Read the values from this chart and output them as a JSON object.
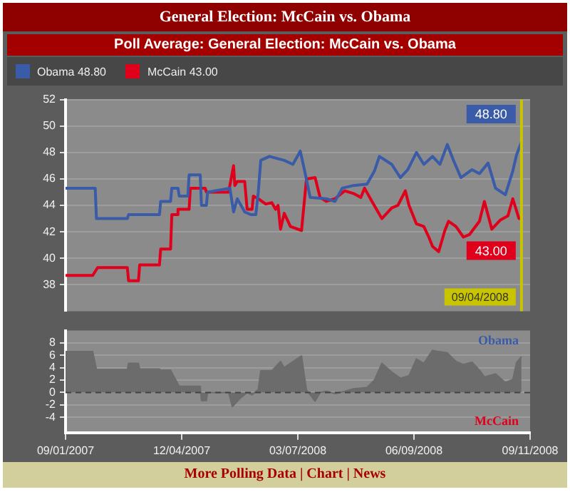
{
  "chart_data": [
    {
      "type": "line",
      "title": "General Election: McCain vs. Obama",
      "subtitle": "Poll Average: General Election: McCain vs. Obama",
      "xlim": [
        "2007-09-01",
        "2008-09-11"
      ],
      "ylim": [
        36,
        52
      ],
      "yticks": [
        38,
        40,
        42,
        44,
        46,
        48,
        50,
        52
      ],
      "tick_labels": "y",
      "grid": "y",
      "legend": "top left",
      "series": [
        {
          "name": "Obama 48.80",
          "color": "#3a5ba8",
          "x": [
            "2007-09-01",
            "2007-09-25",
            "2007-09-26",
            "2007-10-21",
            "2007-10-22",
            "2007-11-16",
            "2007-11-17",
            "2007-11-25",
            "2007-11-26",
            "2007-12-01",
            "2007-12-02",
            "2007-12-09",
            "2007-12-10",
            "2007-12-19",
            "2007-12-20",
            "2007-12-24",
            "2007-12-25",
            "2008-01-12",
            "2008-01-15",
            "2008-01-18",
            "2008-01-24",
            "2008-01-29",
            "2008-02-02",
            "2008-02-04",
            "2008-02-06",
            "2008-02-13",
            "2008-02-25",
            "2008-03-03",
            "2008-03-09",
            "2008-03-13",
            "2008-03-17",
            "2008-03-30",
            "2008-04-06",
            "2008-04-12",
            "2008-04-21",
            "2008-05-02",
            "2008-05-08",
            "2008-05-12",
            "2008-05-22",
            "2008-05-29",
            "2008-06-04",
            "2008-06-11",
            "2008-06-17",
            "2008-06-24",
            "2008-06-30",
            "2008-07-06",
            "2008-07-11",
            "2008-07-17",
            "2008-07-26",
            "2008-08-01",
            "2008-08-08",
            "2008-08-14",
            "2008-08-22",
            "2008-08-28",
            "2008-08-31",
            "2008-09-04"
          ],
          "values": [
            45.3,
            45.3,
            43.0,
            43.0,
            43.3,
            43.3,
            44.3,
            44.3,
            45.3,
            45.3,
            44.7,
            44.7,
            46.3,
            46.3,
            44.0,
            44.0,
            45.0,
            45.3,
            43.5,
            44.5,
            43.5,
            43.3,
            43.3,
            45.0,
            47.4,
            47.7,
            47.4,
            47.1,
            48.1,
            46.4,
            44.6,
            44.5,
            44.3,
            45.3,
            45.5,
            45.6,
            46.6,
            47.7,
            47.1,
            46.1,
            46.7,
            48.0,
            47.1,
            47.7,
            47.1,
            48.6,
            47.4,
            46.1,
            46.7,
            46.4,
            47.2,
            45.3,
            44.8,
            46.6,
            47.8,
            48.8
          ]
        },
        {
          "name": "McCain 43.00",
          "color": "#e0001b",
          "x": [
            "2007-09-01",
            "2007-09-23",
            "2007-09-25",
            "2007-09-27",
            "2007-10-21",
            "2007-10-22",
            "2007-10-30",
            "2007-10-31",
            "2007-11-16",
            "2007-11-17",
            "2007-11-25",
            "2007-11-26",
            "2007-11-30",
            "2007-12-01",
            "2007-12-10",
            "2007-12-11",
            "2007-12-23",
            "2007-12-24",
            "2008-01-11",
            "2008-01-15",
            "2008-01-16",
            "2008-01-18",
            "2008-01-24",
            "2008-01-26",
            "2008-01-30",
            "2008-01-31",
            "2008-02-04",
            "2008-02-10",
            "2008-02-15",
            "2008-02-18",
            "2008-02-20",
            "2008-02-22",
            "2008-02-25",
            "2008-03-01",
            "2008-03-10",
            "2008-03-14",
            "2008-03-21",
            "2008-03-25",
            "2008-03-30",
            "2008-04-06",
            "2008-04-14",
            "2008-04-21",
            "2008-04-27",
            "2008-04-30",
            "2008-05-06",
            "2008-05-14",
            "2008-05-22",
            "2008-05-27",
            "2008-06-02",
            "2008-06-05",
            "2008-06-11",
            "2008-06-17",
            "2008-06-21",
            "2008-06-24",
            "2008-06-29",
            "2008-07-04",
            "2008-07-07",
            "2008-07-13",
            "2008-07-19",
            "2008-07-24",
            "2008-08-01",
            "2008-08-05",
            "2008-08-11",
            "2008-08-18",
            "2008-08-24",
            "2008-08-28",
            "2008-09-02",
            "2008-09-04"
          ],
          "values": [
            38.7,
            38.7,
            39.0,
            39.3,
            39.3,
            38.3,
            38.3,
            39.5,
            39.5,
            40.7,
            40.7,
            43.3,
            43.3,
            43.7,
            43.7,
            45.3,
            45.3,
            45.0,
            45.0,
            47.0,
            45.5,
            45.8,
            45.8,
            43.7,
            43.7,
            44.7,
            44.5,
            44.1,
            44.2,
            43.7,
            44.0,
            42.2,
            43.4,
            42.4,
            42.1,
            46.0,
            46.1,
            44.6,
            44.3,
            44.5,
            45.1,
            44.9,
            44.6,
            45.3,
            44.3,
            43.0,
            43.8,
            44.0,
            45.1,
            44.0,
            42.6,
            42.4,
            41.6,
            40.9,
            40.5,
            42.1,
            42.8,
            42.4,
            41.6,
            41.8,
            42.8,
            44.3,
            42.2,
            42.9,
            43.2,
            44.5,
            43.0,
            43.0
          ]
        }
      ],
      "annotations": [
        {
          "text": "48.80",
          "x": "2008-09-04",
          "y": 48.8
        },
        {
          "text": "43.00",
          "x": "2008-09-04",
          "y": 43.0
        },
        "More Polling Data | Chart | News"
      ],
      "ref_lines": [
        {
          "axis": "x",
          "value": "2008-09-04",
          "label": "09/04/2008",
          "color": "#c8c400"
        }
      ]
    },
    {
      "type": "area",
      "xlim": [
        "2007-09-01",
        "2008-09-11"
      ],
      "xticks": [
        {
          "value": "2007-09-01",
          "label": "09/01/2007"
        },
        {
          "value": "2007-12-04",
          "label": "12/04/2007"
        },
        {
          "value": "2008-03-07",
          "label": "03/07/2008"
        },
        {
          "value": "2008-06-09",
          "label": "06/09/2008"
        },
        {
          "value": "2008-09-11",
          "label": "09/11/2008"
        }
      ],
      "ylim": [
        -6.5,
        10
      ],
      "yticks": [
        -4,
        -2,
        0,
        2,
        4,
        6,
        8
      ],
      "grid": "y",
      "series": [
        {
          "color": "#6c6c6c",
          "x": [
            "2007-09-01",
            "2007-09-23",
            "2007-09-26",
            "2007-10-21",
            "2007-10-22",
            "2007-10-30",
            "2007-10-31",
            "2007-11-16",
            "2007-11-17",
            "2007-11-25",
            "2007-12-02",
            "2007-12-10",
            "2007-12-19",
            "2007-12-20",
            "2007-12-24",
            "2007-12-25",
            "2008-01-11",
            "2008-01-14",
            "2008-01-20",
            "2008-01-26",
            "2008-01-30",
            "2008-02-04",
            "2008-02-06",
            "2008-02-15",
            "2008-02-22",
            "2008-02-25",
            "2008-03-01",
            "2008-03-10",
            "2008-03-14",
            "2008-03-21",
            "2008-03-25",
            "2008-03-30",
            "2008-04-06",
            "2008-04-14",
            "2008-04-21",
            "2008-05-02",
            "2008-05-08",
            "2008-05-14",
            "2008-05-22",
            "2008-05-29",
            "2008-06-05",
            "2008-06-11",
            "2008-06-17",
            "2008-06-24",
            "2008-06-29",
            "2008-07-06",
            "2008-07-13",
            "2008-07-19",
            "2008-07-26",
            "2008-08-01",
            "2008-08-05",
            "2008-08-14",
            "2008-08-22",
            "2008-08-28",
            "2008-08-31",
            "2008-09-04"
          ],
          "values": [
            6.6,
            6.6,
            3.7,
            3.7,
            4.7,
            4.7,
            3.8,
            3.8,
            3.6,
            3.6,
            1.0,
            1.0,
            1.0,
            -1.3,
            -1.3,
            0,
            0,
            -2.3,
            -1.0,
            0,
            -0.4,
            0.5,
            3.5,
            3.5,
            5.0,
            4.0,
            4.7,
            5.9,
            0.4,
            -1.4,
            0,
            0.2,
            -0.2,
            0.2,
            0.6,
            0.8,
            2.0,
            4.7,
            3.3,
            2.3,
            2.7,
            5.4,
            4.7,
            6.8,
            6.6,
            6.4,
            5.0,
            4.5,
            4.9,
            3.6,
            2.5,
            3.0,
            1.6,
            2.1,
            4.8,
            5.8
          ]
        }
      ],
      "annotations": [
        "Obama",
        "McCain"
      ],
      "ref_lines": [
        {
          "axis": "y",
          "value": 0,
          "color": "#444444",
          "line_style": "dashed"
        }
      ]
    }
  ]
}
